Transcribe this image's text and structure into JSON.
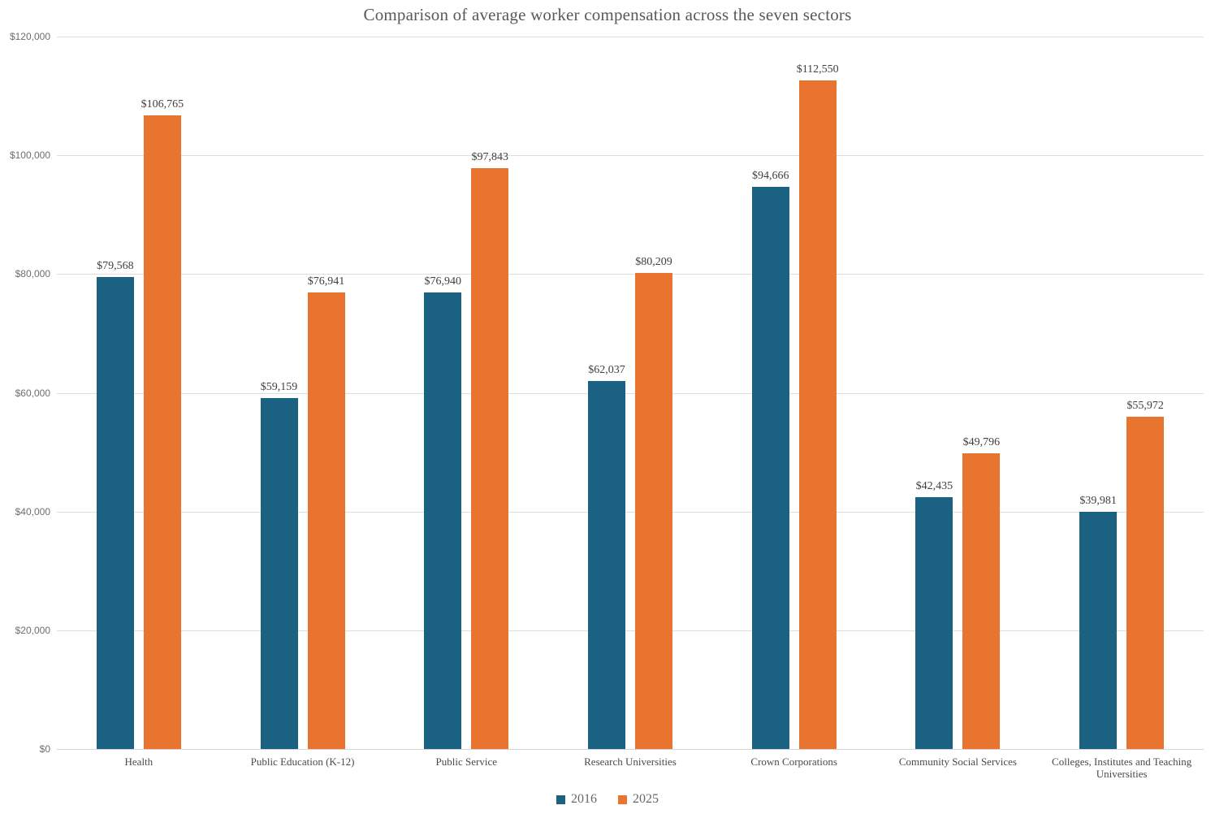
{
  "chart_data": {
    "type": "bar",
    "title": "Comparison of average worker compensation across the seven sectors",
    "categories": [
      "Health",
      "Public Education (K-12)",
      "Public Service",
      "Research Universities",
      "Crown Corporations",
      "Community Social Services",
      "Colleges, Institutes and Teaching Universities"
    ],
    "series": [
      {
        "name": "2016",
        "color": "#1b6182",
        "values": [
          79568,
          59159,
          76940,
          62037,
          94666,
          42435,
          39981
        ],
        "labels": [
          "$79,568",
          "$59,159",
          "$76,940",
          "$62,037",
          "$94,666",
          "$42,435",
          "$39,981"
        ]
      },
      {
        "name": "2025",
        "color": "#e8742f",
        "values": [
          106765,
          76941,
          97843,
          80209,
          112550,
          49796,
          55972
        ],
        "labels": [
          "$106,765",
          "$76,941",
          "$97,843",
          "$80,209",
          "$112,550",
          "$49,796",
          "$55,972"
        ]
      }
    ],
    "y_axis": {
      "min": 0,
      "max": 120000,
      "tick_step": 20000,
      "tick_labels": [
        "$0",
        "$20,000",
        "$40,000",
        "$60,000",
        "$80,000",
        "$100,000",
        "$120,000"
      ]
    },
    "xlabel": "",
    "ylabel": "",
    "grid": true,
    "legend_position": "bottom",
    "style": {
      "title_color": "#595959",
      "gridline_color": "#dedede",
      "axis_label_color": "#6e6e6e",
      "data_label_color": "#404040",
      "category_label_color": "#4a4a4a",
      "legend_text_color": "#666666",
      "background": "#ffffff"
    }
  }
}
